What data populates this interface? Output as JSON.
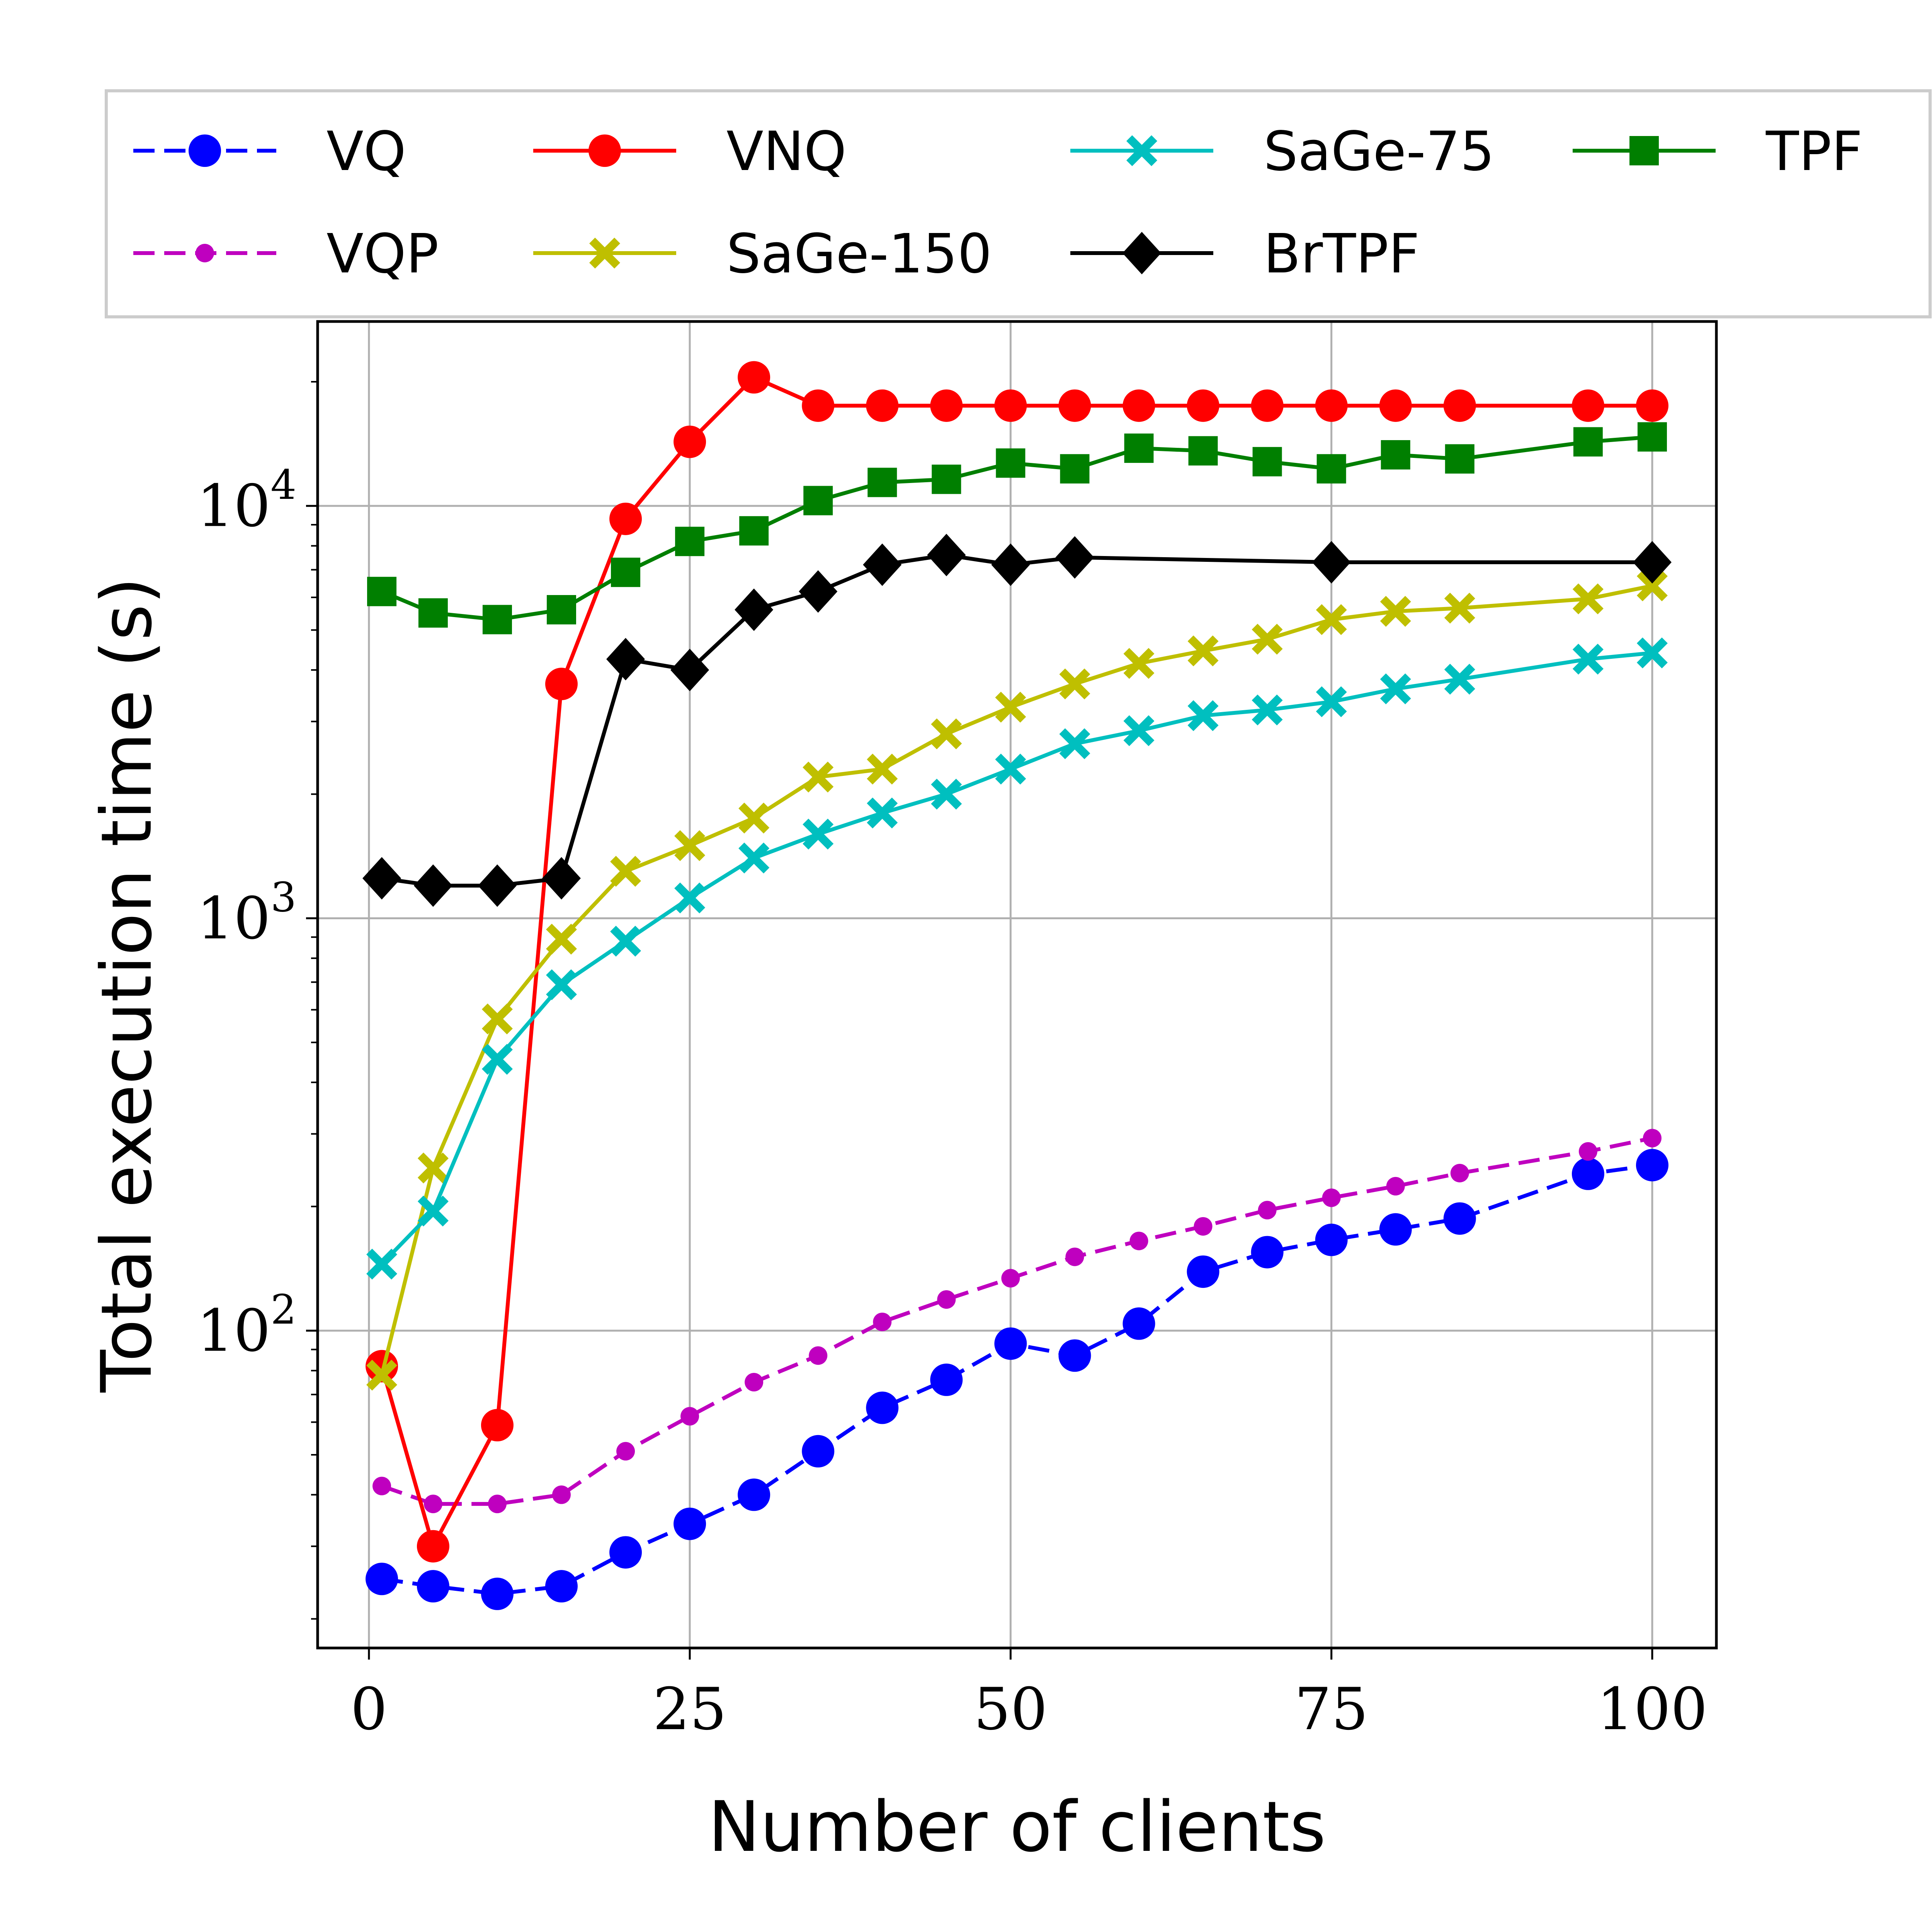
{
  "chart_data": {
    "type": "line",
    "xlabel": "Number of clients",
    "ylabel": "Total execution time (s)",
    "yscale": "log",
    "xlim": [
      -4,
      105
    ],
    "ylim": [
      17,
      28000
    ],
    "grid": true,
    "legend_position": "top",
    "x_ticks": [
      0,
      25,
      50,
      75,
      100
    ],
    "y_ticks": [
      {
        "value": 100,
        "base": "10",
        "exp": "2"
      },
      {
        "value": 1000,
        "base": "10",
        "exp": "3"
      },
      {
        "value": 10000,
        "base": "10",
        "exp": "4"
      }
    ],
    "series": [
      {
        "name": "VQ",
        "color": "#0000ff",
        "dash": "dashed",
        "marker": "circle",
        "marker_size": "large",
        "x": [
          1,
          5,
          10,
          15,
          20,
          25,
          30,
          35,
          40,
          45,
          50,
          55,
          60,
          65,
          70,
          75,
          80,
          85,
          95,
          100
        ],
        "values": [
          25,
          24,
          23,
          24,
          29,
          34,
          40,
          51,
          65,
          76,
          93,
          87,
          104,
          139,
          155,
          166,
          176,
          187,
          240,
          252
        ]
      },
      {
        "name": "VQP",
        "color": "#bf00bf",
        "dash": "dashed",
        "marker": "circle",
        "marker_size": "small",
        "x": [
          1,
          5,
          10,
          15,
          20,
          25,
          30,
          35,
          40,
          45,
          50,
          55,
          60,
          65,
          70,
          75,
          80,
          85,
          95,
          100
        ],
        "values": [
          42,
          38,
          38,
          40,
          51,
          62,
          75,
          87,
          105,
          119,
          134,
          151,
          165,
          179,
          196,
          210,
          224,
          241,
          272,
          293
        ]
      },
      {
        "name": "VNQ",
        "color": "#ff0000",
        "dash": "solid",
        "marker": "circle",
        "marker_size": "large",
        "x": [
          1,
          5,
          10,
          15,
          20,
          25,
          30,
          35,
          40,
          45,
          50,
          55,
          60,
          65,
          70,
          75,
          80,
          85,
          95,
          100
        ],
        "values": [
          82,
          30,
          59,
          3700,
          9300,
          14300,
          20500,
          17500,
          17500,
          17500,
          17500,
          17500,
          17500,
          17500,
          17500,
          17500,
          17500,
          17500,
          17500,
          17500
        ]
      },
      {
        "name": "SaGe-150",
        "color": "#bfbf00",
        "dash": "solid",
        "marker": "x",
        "x": [
          1,
          5,
          10,
          15,
          20,
          25,
          30,
          35,
          40,
          45,
          50,
          55,
          60,
          65,
          70,
          75,
          80,
          85,
          95,
          100
        ],
        "values": [
          78,
          248,
          570,
          890,
          1300,
          1500,
          1750,
          2200,
          2300,
          2800,
          3250,
          3700,
          4150,
          4450,
          4750,
          5300,
          5550,
          5650,
          5950,
          6400
        ]
      },
      {
        "name": "SaGe-75",
        "color": "#00bfbf",
        "dash": "solid",
        "marker": "x",
        "x": [
          1,
          5,
          10,
          15,
          20,
          25,
          30,
          35,
          40,
          45,
          50,
          55,
          60,
          65,
          70,
          75,
          80,
          85,
          95,
          100
        ],
        "values": [
          145,
          195,
          455,
          690,
          880,
          1120,
          1400,
          1600,
          1800,
          2000,
          2300,
          2650,
          2850,
          3100,
          3200,
          3350,
          3600,
          3800,
          4250,
          4400
        ]
      },
      {
        "name": "BrTPF",
        "color": "#000000",
        "dash": "solid",
        "marker": "diamond",
        "x": [
          1,
          5,
          10,
          15,
          20,
          25,
          30,
          35,
          40,
          45,
          50,
          55,
          75,
          100
        ],
        "values": [
          1250,
          1200,
          1200,
          1250,
          4250,
          4000,
          5600,
          6200,
          7200,
          7600,
          7200,
          7500,
          7300,
          7300
        ]
      },
      {
        "name": "TPF",
        "color": "#007f00",
        "dash": "solid",
        "marker": "square",
        "x": [
          1,
          5,
          10,
          15,
          20,
          25,
          30,
          35,
          40,
          45,
          50,
          55,
          60,
          65,
          70,
          75,
          80,
          85,
          95,
          100
        ],
        "values": [
          6200,
          5500,
          5300,
          5600,
          6900,
          8200,
          8700,
          10300,
          11400,
          11600,
          12700,
          12300,
          13800,
          13600,
          12800,
          12300,
          13300,
          13000,
          14300,
          14700
        ]
      }
    ]
  }
}
